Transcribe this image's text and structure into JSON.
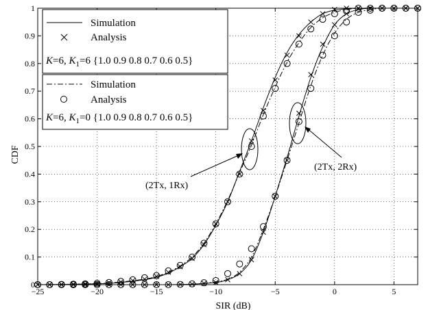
{
  "chart_data": {
    "type": "line",
    "xlabel": "SIR (dB)",
    "ylabel": "CDF",
    "xlim": [
      -25,
      7
    ],
    "ylim": [
      0,
      1
    ],
    "xticks": [
      -25,
      -20,
      -15,
      -10,
      -5,
      0,
      5
    ],
    "yticks": [
      0,
      0.1,
      0.2,
      0.3,
      0.4,
      0.5,
      0.6,
      0.7,
      0.8,
      0.9,
      1
    ],
    "grid": true,
    "legends": [
      {
        "placement": "top-left",
        "entries": [
          {
            "label": "Simulation",
            "style": "solid"
          },
          {
            "label": "Analysis",
            "marker": "x"
          }
        ],
        "caption_K": "K",
        "caption_eq1": "=6, ",
        "caption_K1": "K",
        "caption_sub": "1",
        "caption_rest": "=6 {1.0 0.9 0.8 0.7 0.6 0.5}"
      },
      {
        "placement": "upper-left",
        "entries": [
          {
            "label": "Simulation",
            "style": "dash-dot"
          },
          {
            "label": "Analysis",
            "marker": "o"
          }
        ],
        "caption_K": "K",
        "caption_eq1": "=6, ",
        "caption_K1": "K",
        "caption_sub": "1",
        "caption_rest": "=0 {1.0 0.9 0.8 0.7 0.6 0.5}"
      }
    ],
    "annotations": [
      {
        "text": "(2Tx, 1Rx)",
        "target_x": -6.5,
        "target_y": 0.52
      },
      {
        "text": "(2Tx, 2Rx)",
        "target_x": -2.3,
        "target_y": 0.6
      }
    ],
    "series": [
      {
        "group": "2Tx,1Rx K1=6",
        "kind": "simulation",
        "style": "solid",
        "x": [
          -25,
          -20,
          -18,
          -16,
          -15,
          -14,
          -13,
          -12,
          -11,
          -10,
          -9,
          -8,
          -7,
          -6,
          -5,
          -4,
          -3,
          -2,
          -1,
          0,
          1,
          2,
          3,
          4,
          5,
          7
        ],
        "y": [
          0.0,
          0.003,
          0.008,
          0.018,
          0.027,
          0.042,
          0.065,
          0.095,
          0.145,
          0.215,
          0.3,
          0.41,
          0.52,
          0.64,
          0.75,
          0.84,
          0.905,
          0.95,
          0.98,
          0.993,
          0.998,
          1.0,
          1.0,
          1.0,
          1.0,
          1.0
        ]
      },
      {
        "group": "2Tx,1Rx K1=6",
        "kind": "analysis",
        "marker": "x",
        "x": [
          -25,
          -24,
          -23,
          -22,
          -21,
          -20,
          -19,
          -18,
          -17,
          -16,
          -15,
          -14,
          -13,
          -12,
          -11,
          -10,
          -9,
          -8,
          -7,
          -6,
          -5,
          -4,
          -3,
          -2,
          -1,
          0,
          1,
          2,
          3,
          4,
          5,
          6,
          7
        ],
        "y": [
          0.0,
          0.0,
          0.001,
          0.002,
          0.003,
          0.005,
          0.007,
          0.01,
          0.015,
          0.02,
          0.03,
          0.045,
          0.065,
          0.095,
          0.145,
          0.22,
          0.3,
          0.4,
          0.52,
          0.63,
          0.74,
          0.83,
          0.9,
          0.95,
          0.98,
          0.995,
          1.0,
          1.0,
          1.0,
          1.0,
          1.0,
          1.0,
          1.0
        ]
      },
      {
        "group": "2Tx,1Rx K1=0",
        "kind": "simulation",
        "style": "dash-dot",
        "x": [
          -25,
          -20,
          -18,
          -16,
          -15,
          -14,
          -13,
          -12,
          -11,
          -10,
          -9,
          -8,
          -7,
          -6,
          -5,
          -4,
          -3,
          -2,
          -1,
          0,
          1,
          2,
          3,
          4,
          5,
          7
        ],
        "y": [
          0.0,
          0.004,
          0.01,
          0.02,
          0.03,
          0.045,
          0.068,
          0.1,
          0.15,
          0.22,
          0.305,
          0.405,
          0.505,
          0.615,
          0.715,
          0.805,
          0.875,
          0.93,
          0.965,
          0.985,
          0.995,
          1.0,
          1.0,
          1.0,
          1.0,
          1.0
        ]
      },
      {
        "group": "2Tx,1Rx K1=0",
        "kind": "analysis",
        "marker": "o",
        "x": [
          -25,
          -24,
          -23,
          -22,
          -21,
          -20,
          -19,
          -18,
          -17,
          -16,
          -15,
          -14,
          -13,
          -12,
          -11,
          -10,
          -9,
          -8,
          -7,
          -6,
          -5,
          -4,
          -3,
          -2,
          -1,
          0,
          1,
          2,
          3,
          4,
          5,
          6,
          7
        ],
        "y": [
          0.0,
          0.0,
          0.001,
          0.002,
          0.003,
          0.005,
          0.008,
          0.012,
          0.018,
          0.025,
          0.033,
          0.05,
          0.07,
          0.1,
          0.15,
          0.22,
          0.3,
          0.4,
          0.5,
          0.61,
          0.71,
          0.8,
          0.87,
          0.925,
          0.96,
          0.98,
          0.99,
          1.0,
          1.0,
          1.0,
          1.0,
          1.0,
          1.0
        ]
      },
      {
        "group": "2Tx,2Rx K1=6",
        "kind": "simulation",
        "style": "solid",
        "x": [
          -25,
          -15,
          -12,
          -10,
          -9,
          -8,
          -7,
          -6,
          -5,
          -4,
          -3,
          -2,
          -1,
          0,
          1,
          2,
          3,
          4,
          5,
          7
        ],
        "y": [
          0.0,
          0.0,
          0.002,
          0.008,
          0.018,
          0.04,
          0.09,
          0.19,
          0.32,
          0.46,
          0.61,
          0.75,
          0.86,
          0.94,
          0.98,
          0.995,
          1.0,
          1.0,
          1.0,
          1.0
        ],
        "dense": true
      },
      {
        "group": "2Tx,2Rx K1=6",
        "kind": "analysis",
        "marker": "x",
        "x": [
          -25,
          -24,
          -23,
          -22,
          -21,
          -20,
          -19,
          -18,
          -17,
          -16,
          -15,
          -14,
          -13,
          -12,
          -11,
          -10,
          -9,
          -8,
          -7,
          -6,
          -5,
          -4,
          -3,
          -2,
          -1,
          0,
          1,
          2,
          3,
          4,
          5,
          6,
          7
        ],
        "y": [
          0.0,
          0.0,
          0.0,
          0.0,
          0.0,
          0.0,
          0.0,
          0.0,
          0.0,
          0.0,
          0.0,
          0.0,
          0.001,
          0.002,
          0.005,
          0.008,
          0.018,
          0.04,
          0.09,
          0.19,
          0.32,
          0.45,
          0.62,
          0.76,
          0.87,
          0.94,
          0.98,
          1.0,
          1.0,
          1.0,
          1.0,
          1.0,
          1.0
        ]
      },
      {
        "group": "2Tx,2Rx K1=0",
        "kind": "simulation",
        "style": "dash-dot",
        "x": [
          -25,
          -15,
          -12,
          -10,
          -9,
          -8,
          -7,
          -6,
          -5,
          -4,
          -3,
          -2,
          -1,
          0,
          1,
          2,
          3,
          4,
          5,
          7
        ],
        "y": [
          0.0,
          0.0,
          0.002,
          0.01,
          0.02,
          0.045,
          0.1,
          0.2,
          0.32,
          0.45,
          0.585,
          0.72,
          0.83,
          0.91,
          0.96,
          0.985,
          0.995,
          1.0,
          1.0,
          1.0
        ]
      },
      {
        "group": "2Tx,2Rx K1=0",
        "kind": "analysis",
        "marker": "o",
        "x": [
          -25,
          -24,
          -23,
          -22,
          -21,
          -20,
          -19,
          -18,
          -17,
          -16,
          -15,
          -14,
          -13,
          -12,
          -11,
          -10,
          -9,
          -8,
          -7,
          -6,
          -5,
          -4,
          -3,
          -2,
          -1,
          0,
          1,
          2,
          3,
          4,
          5,
          6,
          7
        ],
        "y": [
          0.0,
          0.0,
          0.0,
          0.0,
          0.0,
          0.0,
          0.0,
          0.0,
          0.0,
          0.0,
          0.0,
          0.0,
          0.001,
          0.003,
          0.007,
          0.015,
          0.04,
          0.075,
          0.13,
          0.21,
          0.32,
          0.45,
          0.59,
          0.71,
          0.83,
          0.9,
          0.95,
          0.985,
          0.993,
          1.0,
          1.0,
          1.0,
          1.0
        ]
      }
    ]
  }
}
